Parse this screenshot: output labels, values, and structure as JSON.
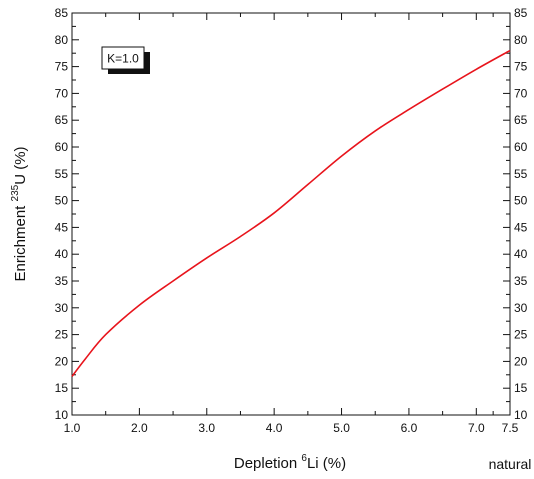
{
  "chart_data": {
    "type": "line",
    "xlabel": {
      "before": "Depletion ",
      "sup": "6",
      "after": "Li (%)"
    },
    "ylabel": {
      "before": "Enrichment  ",
      "sup": "235",
      "after": "U (%)"
    },
    "extra_x_label": "natural",
    "legend_text": "K=1.0",
    "xlim": [
      1.0,
      7.5
    ],
    "ylim": [
      10,
      85
    ],
    "x_ticks": [
      {
        "value": 1.0,
        "label": "1.0"
      },
      {
        "value": 2.0,
        "label": "2.0"
      },
      {
        "value": 3.0,
        "label": "3.0"
      },
      {
        "value": 4.0,
        "label": "4.0"
      },
      {
        "value": 5.0,
        "label": "5.0"
      },
      {
        "value": 6.0,
        "label": "6.0"
      },
      {
        "value": 7.0,
        "label": "7.0"
      },
      {
        "value": 7.5,
        "label": "7.5"
      }
    ],
    "y_ticks": [
      {
        "value": 10,
        "label": "10"
      },
      {
        "value": 15,
        "label": "15"
      },
      {
        "value": 20,
        "label": "20"
      },
      {
        "value": 25,
        "label": "25"
      },
      {
        "value": 30,
        "label": "30"
      },
      {
        "value": 35,
        "label": "35"
      },
      {
        "value": 40,
        "label": "40"
      },
      {
        "value": 45,
        "label": "45"
      },
      {
        "value": 50,
        "label": "50"
      },
      {
        "value": 55,
        "label": "55"
      },
      {
        "value": 60,
        "label": "60"
      },
      {
        "value": 65,
        "label": "65"
      },
      {
        "value": 70,
        "label": "70"
      },
      {
        "value": 75,
        "label": "75"
      },
      {
        "value": 80,
        "label": "80"
      },
      {
        "value": 85,
        "label": "85"
      }
    ],
    "series": [
      {
        "color": "#e8141c",
        "x": [
          1.0,
          1.2,
          1.5,
          2.0,
          2.5,
          3.0,
          3.5,
          4.0,
          4.5,
          5.0,
          5.5,
          6.0,
          6.5,
          7.0,
          7.5
        ],
        "y": [
          17.2,
          20.5,
          25.0,
          30.5,
          35.0,
          39.3,
          43.3,
          47.7,
          53.0,
          58.3,
          63.0,
          67.0,
          70.8,
          74.5,
          78.0
        ]
      }
    ],
    "grid": false
  }
}
